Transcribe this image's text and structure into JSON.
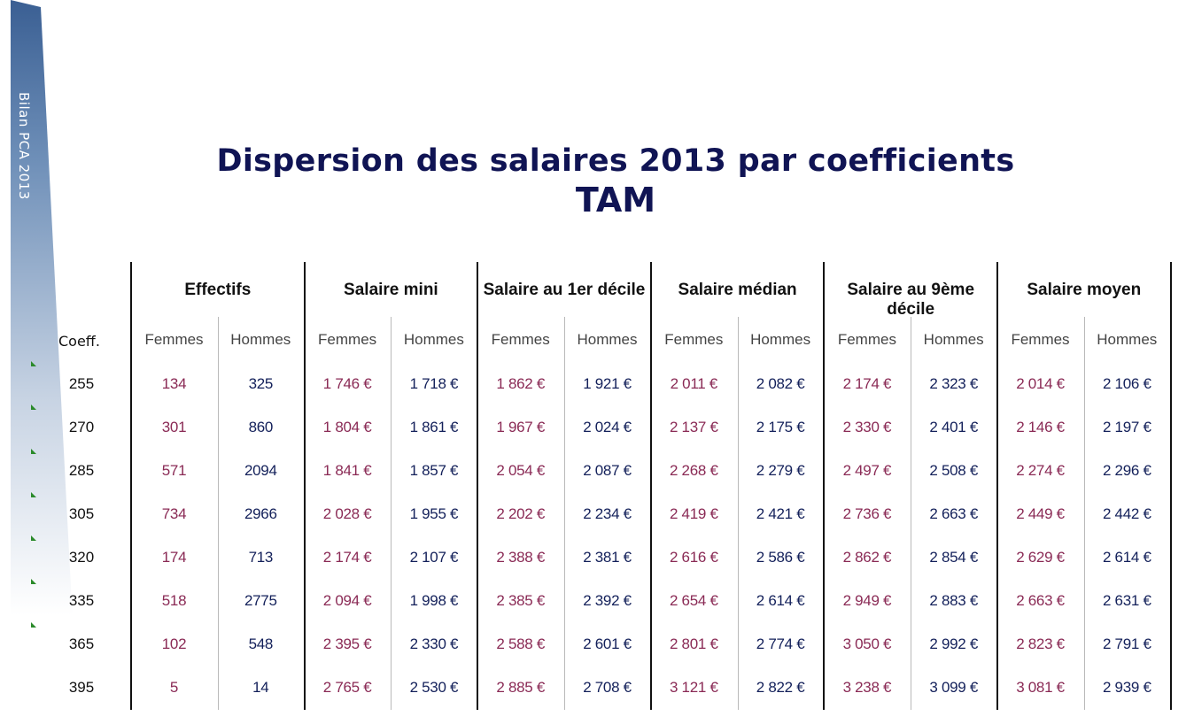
{
  "sidebar": {
    "label": "Bilan PCA 2013"
  },
  "title": {
    "line1": "Dispersion des salaires 2013 par coefficients",
    "line2": "TAM"
  },
  "table": {
    "coeff_header": "Coeff.",
    "groups": [
      "Effectifs",
      "Salaire mini",
      "Salaire au 1er décile",
      "Salaire médian",
      "Salaire au 9ème décile",
      "Salaire moyen"
    ],
    "sub_headers": [
      "Femmes",
      "Hommes"
    ],
    "rows": [
      {
        "coeff": "255",
        "cells": [
          "134",
          "325",
          "1 746 €",
          "1 718 €",
          "1 862 €",
          "1 921 €",
          "2 011 €",
          "2 082 €",
          "2 174 €",
          "2 323 €",
          "2 014 €",
          "2 106 €"
        ]
      },
      {
        "coeff": "270",
        "cells": [
          "301",
          "860",
          "1 804 €",
          "1 861 €",
          "1 967 €",
          "2 024 €",
          "2 137 €",
          "2 175 €",
          "2 330 €",
          "2 401 €",
          "2 146 €",
          "2 197 €"
        ]
      },
      {
        "coeff": "285",
        "cells": [
          "571",
          "2094",
          "1 841 €",
          "1 857 €",
          "2 054 €",
          "2 087 €",
          "2 268 €",
          "2 279 €",
          "2 497 €",
          "2 508 €",
          "2 274 €",
          "2 296 €"
        ]
      },
      {
        "coeff": "305",
        "cells": [
          "734",
          "2966",
          "2 028 €",
          "1 955 €",
          "2 202 €",
          "2 234 €",
          "2 419 €",
          "2 421 €",
          "2 736 €",
          "2 663 €",
          "2 449 €",
          "2 442 €"
        ]
      },
      {
        "coeff": "320",
        "cells": [
          "174",
          "713",
          "2 174 €",
          "2 107 €",
          "2 388 €",
          "2 381 €",
          "2 616 €",
          "2 586 €",
          "2 862 €",
          "2 854 €",
          "2 629 €",
          "2 614 €"
        ]
      },
      {
        "coeff": "335",
        "cells": [
          "518",
          "2775",
          "2 094 €",
          "1 998 €",
          "2 385 €",
          "2 392 €",
          "2 654 €",
          "2 614 €",
          "2 949 €",
          "2 883 €",
          "2 663 €",
          "2 631 €"
        ]
      },
      {
        "coeff": "365",
        "cells": [
          "102",
          "548",
          "2 395 €",
          "2 330 €",
          "2 588 €",
          "2 601 €",
          "2 801 €",
          "2 774 €",
          "3 050 €",
          "2 992 €",
          "2 823 €",
          "2 791 €"
        ]
      },
      {
        "coeff": "395",
        "cells": [
          "5",
          "14",
          "2 765 €",
          "2 530 €",
          "2 885 €",
          "2 708 €",
          "3 121 €",
          "2 822 €",
          "3 238 €",
          "3 099 €",
          "3 081 €",
          "2 939 €"
        ]
      }
    ]
  },
  "colors": {
    "title": "#101454",
    "femmes": "#8a2a55",
    "hommes": "#13205a",
    "bullet": "#2a8a2a"
  }
}
